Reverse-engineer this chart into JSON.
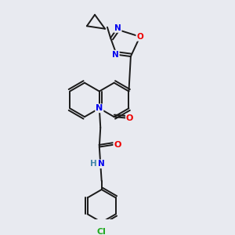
{
  "background_color": "#e8eaf0",
  "bond_color": "#1a1a1a",
  "atom_colors": {
    "N": "#0000ee",
    "O": "#ee0000",
    "Cl": "#22aa22",
    "NH": "#4488aa"
  },
  "figsize": [
    3.0,
    3.0
  ],
  "dpi": 100
}
